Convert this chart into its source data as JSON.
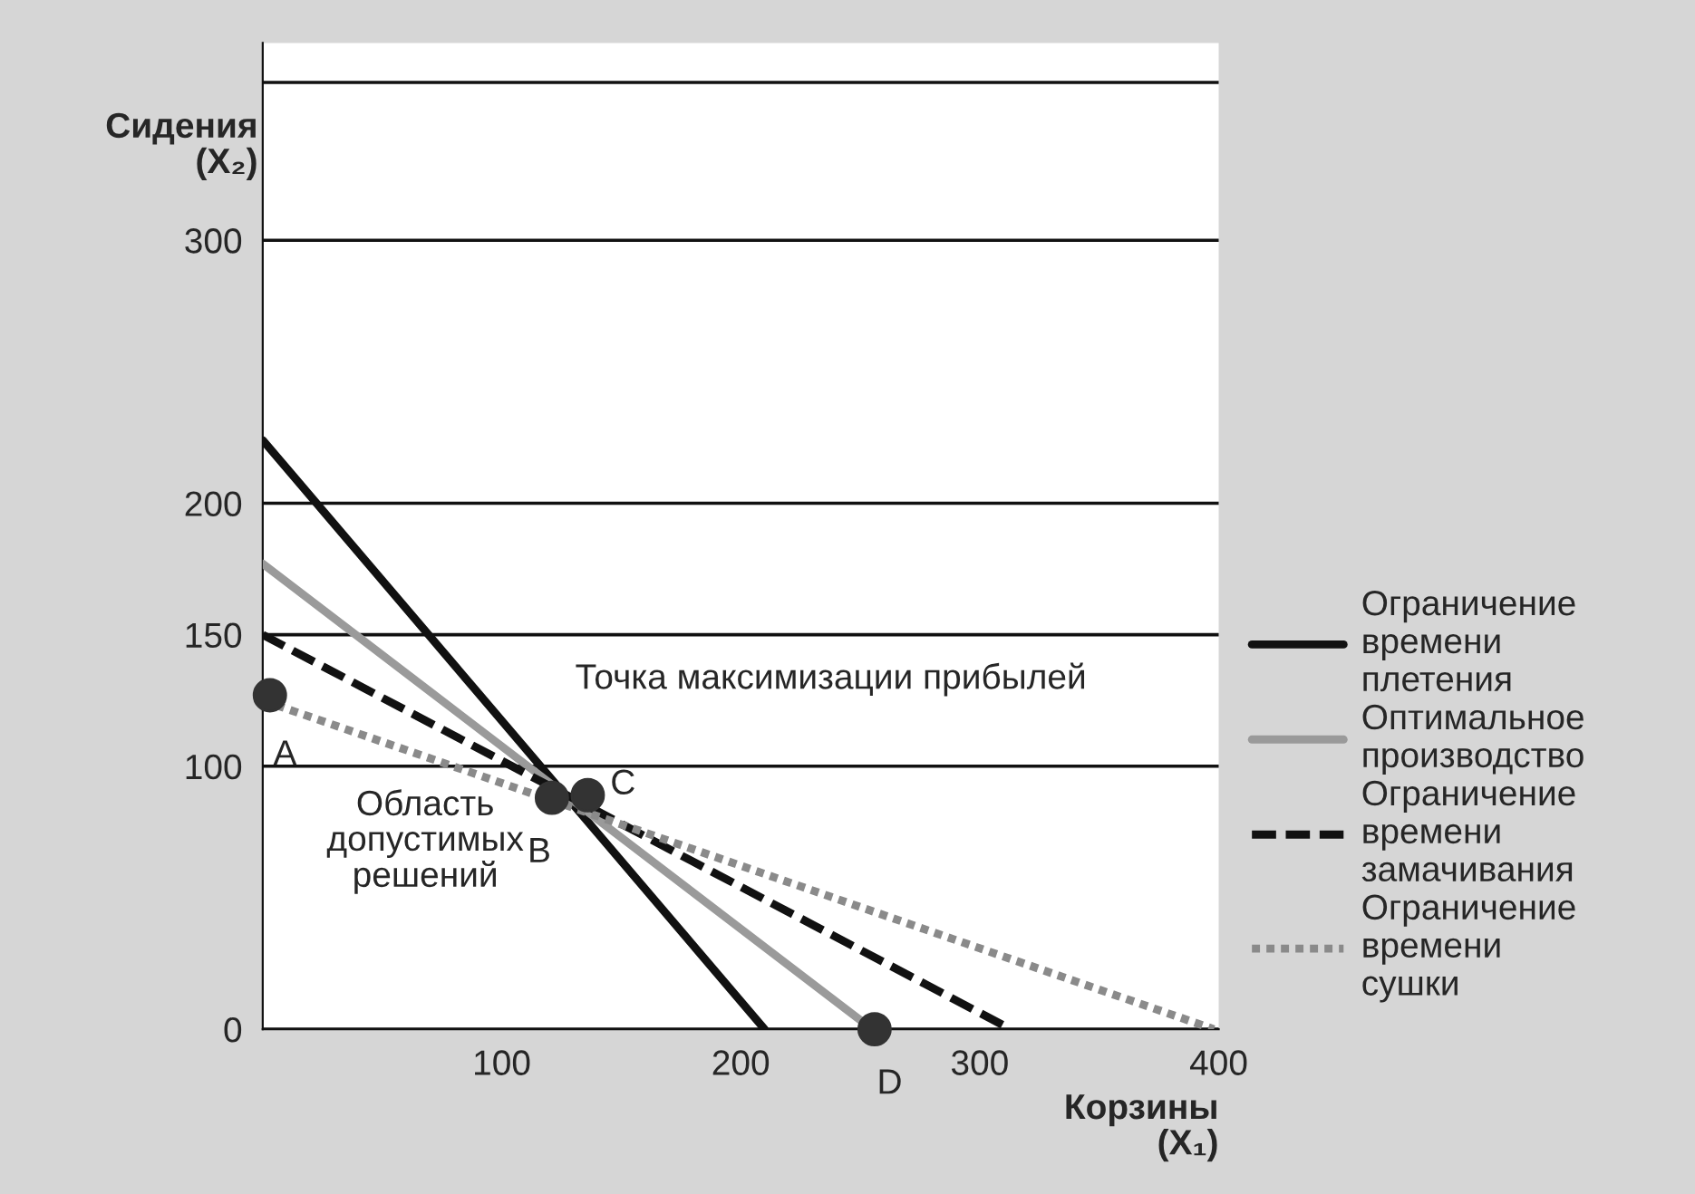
{
  "chart_data": {
    "type": "line",
    "xlabel": "Корзины\n(X₁)",
    "ylabel": "Сидения\n(X₂)",
    "series": [
      {
        "name": "Ограничение времени плетения",
        "color": "#111111",
        "line_style": "solid",
        "x": [
          0,
          210
        ],
        "values": [
          224,
          0
        ]
      },
      {
        "name": "Оптимальное производство",
        "color": "#9a9a9a",
        "line_style": "solid",
        "x": [
          0,
          255
        ],
        "values": [
          177,
          0
        ]
      },
      {
        "name": "Ограничение времени замачивания",
        "color": "#111111",
        "line_style": "dashed",
        "x": [
          0,
          313
        ],
        "values": [
          150,
          0
        ]
      },
      {
        "name": "Ограничение времени сушки",
        "color": "#8a8a8a",
        "line_style": "dotted",
        "x": [
          0,
          398
        ],
        "values": [
          125,
          0
        ]
      },
      {
        "type": "scatter",
        "color": "#333333",
        "marker": "circle",
        "x": [
          3,
          121,
          136,
          256
        ],
        "values": [
          127,
          88,
          89,
          0
        ]
      }
    ],
    "annotations": [
      {
        "text": "A",
        "x": 3,
        "y": 127
      },
      {
        "text": "B",
        "x": 121,
        "y": 88
      },
      {
        "text": "C",
        "x": 136,
        "y": 89
      },
      {
        "text": "D",
        "x": 256,
        "y": 0
      },
      {
        "text": "Точка максимизации прибылей",
        "x": 136,
        "y": 89
      },
      "Область допустимых решений"
    ],
    "xlim": [
      0,
      400
    ],
    "xticks": [
      100,
      200,
      300,
      400
    ],
    "ylim": [
      0,
      375
    ],
    "yticks": [
      0,
      100,
      150,
      200,
      300,
      {
        "value": 360,
        "label": null
      }
    ],
    "grid": "y",
    "legend": "right"
  }
}
